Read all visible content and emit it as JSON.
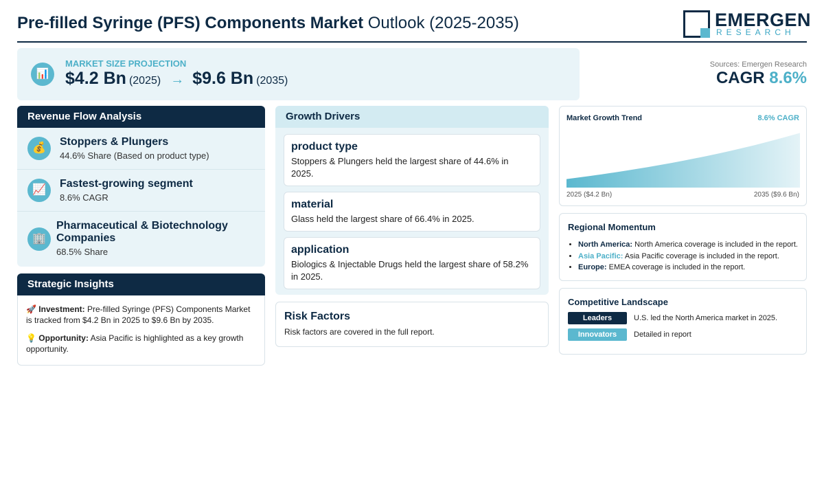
{
  "header": {
    "title_bold": "Pre-filled Syringe (PFS) Components Market",
    "title_rest": " Outlook (2025-2035)",
    "logo_main": "EMERGEN",
    "logo_sub": "RESEARCH"
  },
  "projection": {
    "icon": "bar-chart-icon",
    "label": "MARKET SIZE PROJECTION",
    "start_value": "$4.2 Bn",
    "start_year": "(2025)",
    "arrow": "→",
    "end_value": "$9.6 Bn",
    "end_year": "(2035)"
  },
  "sources": {
    "text": "Sources: Emergen Research",
    "cagr_label": "CAGR",
    "cagr_value": "8.6%"
  },
  "revenue": {
    "title": "Revenue Flow Analysis",
    "items": [
      {
        "icon": "money-bag-icon",
        "glyph": "💰",
        "title": "Stoppers & Plungers",
        "sub": "44.6% Share (Based on product type)"
      },
      {
        "icon": "trend-chart-icon",
        "glyph": "📈",
        "title": "Fastest-growing segment",
        "sub": "8.6% CAGR"
      },
      {
        "icon": "building-icon",
        "glyph": "🏢",
        "title": "Pharmaceutical & Biotechnology Companies",
        "sub": "68.5% Share"
      }
    ]
  },
  "strategic": {
    "title": "Strategic Insights",
    "investment_emoji": "🚀",
    "investment_label": "Investment:",
    "investment_text": " Pre-filled Syringe (PFS) Components Market is tracked from $4.2 Bn in 2025 to $9.6 Bn by 2035.",
    "opportunity_emoji": "💡",
    "opportunity_label": "Opportunity:",
    "opportunity_text": " Asia Pacific is highlighted as a key growth opportunity."
  },
  "drivers": {
    "title": "Growth Drivers",
    "items": [
      {
        "heading": "product type",
        "body": "Stoppers & Plungers held the largest share of 44.6% in 2025."
      },
      {
        "heading": "material",
        "body": "Glass held the largest share of 66.4% in 2025."
      },
      {
        "heading": "application",
        "body": "Biologics & Injectable Drugs held the largest share of 58.2% in 2025."
      }
    ]
  },
  "risk": {
    "title": "Risk Factors",
    "text": "Risk factors are covered in the full report."
  },
  "trend": {
    "title": "Market Growth Trend",
    "cagr": "8.6% CAGR",
    "left_label": "2025 ($4.2 Bn)",
    "right_label": "2035 ($9.6 Bn)",
    "chart_data": {
      "type": "area",
      "x": [
        2025,
        2035
      ],
      "values": [
        4.2,
        9.6
      ],
      "colors": [
        "#5bb8cf",
        "#e4f3f7"
      ]
    }
  },
  "regional": {
    "title": "Regional Momentum",
    "items": [
      {
        "name": "North America:",
        "text": " North America coverage is included in the report."
      },
      {
        "name": "Asia Pacific:",
        "text": " Asia Pacific coverage is included in the report."
      },
      {
        "name": "Europe:",
        "text": " EMEA coverage is included in the report."
      }
    ]
  },
  "competitive": {
    "title": "Competitive Landscape",
    "rows": [
      {
        "label": "Leaders",
        "text": "U.S. led the North America market in 2025."
      },
      {
        "label": "Innovators",
        "text": "Detailed in report"
      }
    ]
  },
  "colors": {
    "navy": "#0e2a44",
    "teal": "#5bb8cf",
    "panel_bg": "#e9f4f8"
  }
}
